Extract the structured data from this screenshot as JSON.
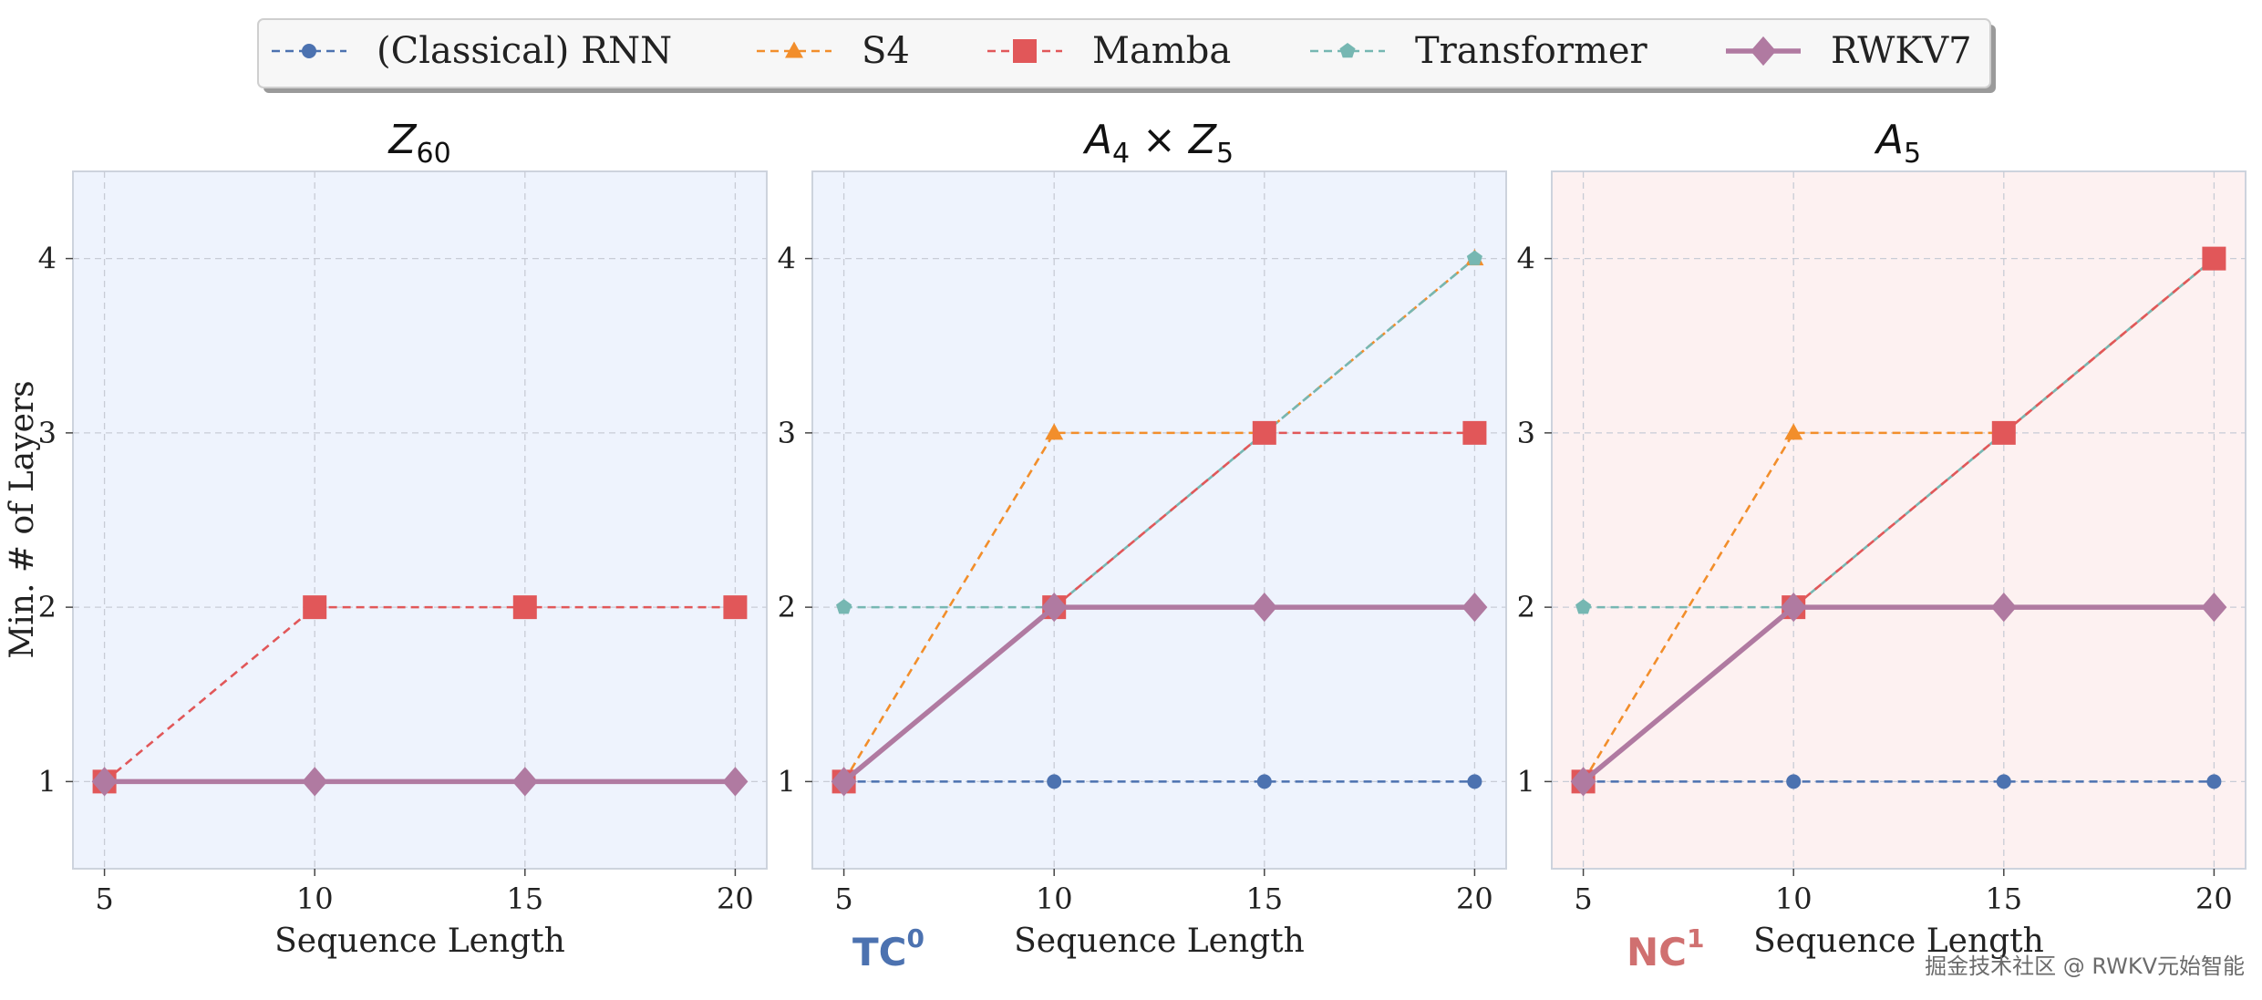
{
  "colors": {
    "rnn": "#4c72b0",
    "s4": "#f28e2b",
    "mamba": "#e15759",
    "transformer": "#76b7b2",
    "rwkv7": "#b07aa1",
    "panel_blue_bg": "#eef3fd",
    "panel_red_bg": "#fdf1f1",
    "tc_label": "#4c72b0",
    "nc_label": "#d07070"
  },
  "legend": {
    "items": [
      {
        "key": "rnn",
        "label": "(Classical) RNN",
        "marker": "circle",
        "dash": true
      },
      {
        "key": "s4",
        "label": "S4",
        "marker": "triangle",
        "dash": true
      },
      {
        "key": "mamba",
        "label": "Mamba",
        "marker": "square",
        "dash": true
      },
      {
        "key": "transformer",
        "label": "Transformer",
        "marker": "pentagon",
        "dash": true
      },
      {
        "key": "rwkv7",
        "label": "RWKV7",
        "marker": "diamond",
        "dash": false
      }
    ],
    "placement": "top-center"
  },
  "shared": {
    "ylabel": "Min. # of Layers",
    "xlabel": "Sequence Length",
    "xticks": [
      5,
      10,
      15,
      20
    ],
    "yticks": [
      1,
      2,
      3,
      4
    ],
    "xlim": [
      4.25,
      20.75
    ],
    "ylim": [
      0.5,
      4.5
    ]
  },
  "class_labels": {
    "tc": {
      "base": "TC",
      "sup": "0"
    },
    "nc": {
      "base": "NC",
      "sup": "1"
    }
  },
  "watermark": "掘金技术社区 @ RWKV元始智能",
  "chart_data": [
    {
      "type": "line",
      "title": {
        "base": "Z",
        "sub": "60",
        "mid": "",
        "base2": "",
        "sub2": ""
      },
      "background": "blue",
      "x": [
        5,
        10,
        15,
        20
      ],
      "series": [
        {
          "key": "rnn",
          "name": "(Classical) RNN",
          "values": [
            1,
            1,
            1,
            1
          ]
        },
        {
          "key": "mamba",
          "name": "Mamba",
          "values": [
            1,
            2,
            2,
            2
          ]
        },
        {
          "key": "rwkv7",
          "name": "RWKV7",
          "values": [
            1,
            1,
            1,
            1
          ]
        }
      ]
    },
    {
      "type": "line",
      "title": {
        "base": "A",
        "sub": "4",
        "mid": " × ",
        "base2": "Z",
        "sub2": "5"
      },
      "background": "blue",
      "x": [
        5,
        10,
        15,
        20
      ],
      "series": [
        {
          "key": "rnn",
          "name": "(Classical) RNN",
          "values": [
            1,
            1,
            1,
            1
          ]
        },
        {
          "key": "s4",
          "name": "S4",
          "values": [
            1,
            3,
            3,
            4
          ]
        },
        {
          "key": "mamba",
          "name": "Mamba",
          "values": [
            1,
            2,
            3,
            3
          ]
        },
        {
          "key": "transformer",
          "name": "Transformer",
          "values": [
            2,
            2,
            3,
            4
          ]
        },
        {
          "key": "rwkv7",
          "name": "RWKV7",
          "values": [
            1,
            2,
            2,
            2
          ]
        }
      ]
    },
    {
      "type": "line",
      "title": {
        "base": "A",
        "sub": "5",
        "mid": "",
        "base2": "",
        "sub2": ""
      },
      "background": "red",
      "x": [
        5,
        10,
        15,
        20
      ],
      "series": [
        {
          "key": "rnn",
          "name": "(Classical) RNN",
          "values": [
            1,
            1,
            1,
            1
          ]
        },
        {
          "key": "s4",
          "name": "S4",
          "values": [
            1,
            3,
            3,
            4
          ]
        },
        {
          "key": "mamba",
          "name": "Mamba",
          "values": [
            1,
            2,
            3,
            4
          ]
        },
        {
          "key": "transformer",
          "name": "Transformer",
          "values": [
            2,
            2,
            3,
            4
          ]
        },
        {
          "key": "rwkv7",
          "name": "RWKV7",
          "values": [
            1,
            2,
            2,
            2
          ]
        }
      ]
    }
  ]
}
